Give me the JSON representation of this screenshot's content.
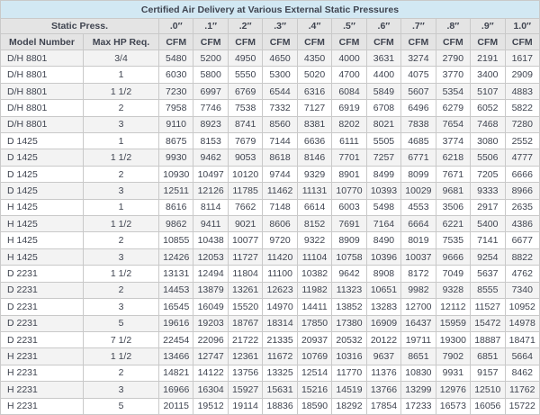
{
  "chart_data": {
    "type": "table",
    "title": "Certified Air Delivery at Various External Static Pressures",
    "header_group_label": "Static Press.",
    "pressure_columns": [
      ".0″",
      ".1″",
      ".2″",
      ".3″",
      ".4″",
      ".5″",
      ".6″",
      ".7″",
      ".8″",
      ".9″",
      "1.0″"
    ],
    "unit": "CFM",
    "row_headers": [
      "Model Number",
      "Max HP Req."
    ],
    "rows": [
      {
        "model": "D/H 8801",
        "max_hp": "3/4",
        "cfm": [
          5480,
          5200,
          4950,
          4650,
          4350,
          4000,
          3631,
          3274,
          2790,
          2191,
          1617
        ]
      },
      {
        "model": "D/H 8801",
        "max_hp": "1",
        "cfm": [
          6030,
          5800,
          5550,
          5300,
          5020,
          4700,
          4400,
          4075,
          3770,
          3400,
          2909
        ]
      },
      {
        "model": "D/H 8801",
        "max_hp": "1 1/2",
        "cfm": [
          7230,
          6997,
          6769,
          6544,
          6316,
          6084,
          5849,
          5607,
          5354,
          5107,
          4883
        ]
      },
      {
        "model": "D/H 8801",
        "max_hp": "2",
        "cfm": [
          7958,
          7746,
          7538,
          7332,
          7127,
          6919,
          6708,
          6496,
          6279,
          6052,
          5822
        ]
      },
      {
        "model": "D/H 8801",
        "max_hp": "3",
        "cfm": [
          9110,
          8923,
          8741,
          8560,
          8381,
          8202,
          8021,
          7838,
          7654,
          7468,
          7280
        ]
      },
      {
        "model": "D 1425",
        "max_hp": "1",
        "cfm": [
          8675,
          8153,
          7679,
          7144,
          6636,
          6111,
          5505,
          4685,
          3774,
          3080,
          2552
        ]
      },
      {
        "model": "D 1425",
        "max_hp": "1 1/2",
        "cfm": [
          9930,
          9462,
          9053,
          8618,
          8146,
          7701,
          7257,
          6771,
          6218,
          5506,
          4777
        ]
      },
      {
        "model": "D 1425",
        "max_hp": "2",
        "cfm": [
          10930,
          10497,
          10120,
          9744,
          9329,
          8901,
          8499,
          8099,
          7671,
          7205,
          6666
        ]
      },
      {
        "model": "D 1425",
        "max_hp": "3",
        "cfm": [
          12511,
          12126,
          11785,
          11462,
          11131,
          10770,
          10393,
          10029,
          9681,
          9333,
          8966
        ]
      },
      {
        "model": "H 1425",
        "max_hp": "1",
        "cfm": [
          8616,
          8114,
          7662,
          7148,
          6614,
          6003,
          5498,
          4553,
          3506,
          2917,
          2635
        ]
      },
      {
        "model": "H 1425",
        "max_hp": "1 1/2",
        "cfm": [
          9862,
          9411,
          9021,
          8606,
          8152,
          7691,
          7164,
          6664,
          6221,
          5400,
          4386
        ]
      },
      {
        "model": "H 1425",
        "max_hp": "2",
        "cfm": [
          10855,
          10438,
          10077,
          9720,
          9322,
          8909,
          8490,
          8019,
          7535,
          7141,
          6677
        ]
      },
      {
        "model": "H 1425",
        "max_hp": "3",
        "cfm": [
          12426,
          12053,
          11727,
          11420,
          11104,
          10758,
          10396,
          10037,
          9666,
          9254,
          8822
        ]
      },
      {
        "model": "D 2231",
        "max_hp": "1 1/2",
        "cfm": [
          13131,
          12494,
          11804,
          11100,
          10382,
          9642,
          8908,
          8172,
          7049,
          5637,
          4762
        ]
      },
      {
        "model": "D 2231",
        "max_hp": "2",
        "cfm": [
          14453,
          13879,
          13261,
          12623,
          11982,
          11323,
          10651,
          9982,
          9328,
          8555,
          7340
        ]
      },
      {
        "model": "D 2231",
        "max_hp": "3",
        "cfm": [
          16545,
          16049,
          15520,
          14970,
          14411,
          13852,
          13283,
          12700,
          12112,
          11527,
          10952
        ]
      },
      {
        "model": "D 2231",
        "max_hp": "5",
        "cfm": [
          19616,
          19203,
          18767,
          18314,
          17850,
          17380,
          16909,
          16437,
          15959,
          15472,
          14978
        ]
      },
      {
        "model": "D 2231",
        "max_hp": "7 1/2",
        "cfm": [
          22454,
          22096,
          21722,
          21335,
          20937,
          20532,
          20122,
          19711,
          19300,
          18887,
          18471
        ]
      },
      {
        "model": "H 2231",
        "max_hp": "1 1/2",
        "cfm": [
          13466,
          12747,
          12361,
          11672,
          10769,
          10316,
          9637,
          8651,
          7902,
          6851,
          5664
        ]
      },
      {
        "model": "H 2231",
        "max_hp": "2",
        "cfm": [
          14821,
          14122,
          13756,
          13325,
          12514,
          11770,
          11376,
          10830,
          9931,
          9157,
          8462
        ]
      },
      {
        "model": "H 2231",
        "max_hp": "3",
        "cfm": [
          16966,
          16304,
          15927,
          15631,
          15216,
          14519,
          13766,
          13299,
          12976,
          12510,
          11762
        ]
      },
      {
        "model": "H 2231",
        "max_hp": "5",
        "cfm": [
          20115,
          19512,
          19114,
          18836,
          18590,
          18292,
          17854,
          17233,
          16573,
          16056,
          15722
        ]
      }
    ]
  },
  "colors": {
    "title_bg": "#d2e8f3",
    "title_text": "#1e2b36",
    "header_bg": "#e4e4e4",
    "stripe_bg": "#f3f3f3",
    "border": "#c9c9c9"
  }
}
